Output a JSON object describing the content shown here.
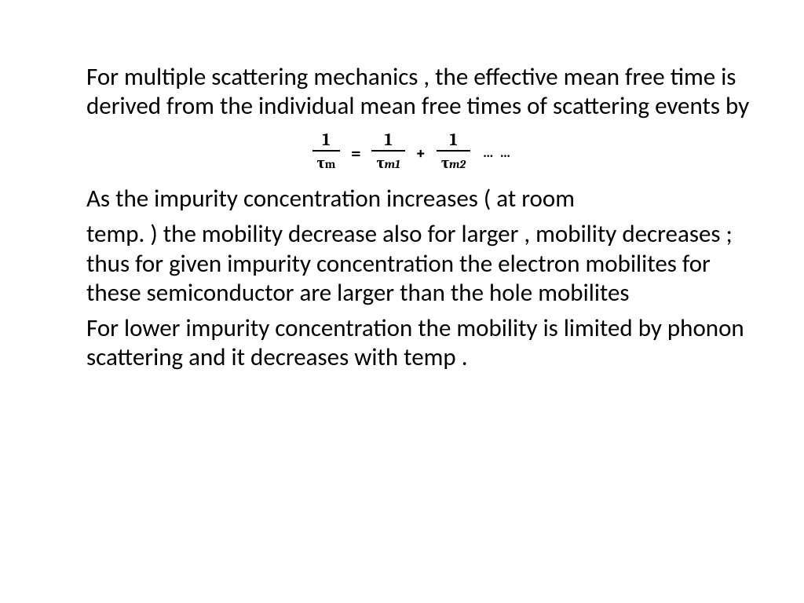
{
  "text": {
    "para1": "For multiple scattering mechanics , the effective mean free time is derived from the individual mean free times of scattering events by",
    "para2": "As the impurity concentration increases ( at room",
    "para3": "temp. ) the mobility decrease also for larger      , mobility decreases ; thus for given impurity concentration the electron mobilites for these semiconductor are larger than the hole mobilites",
    "para4": "For lower impurity concentration the mobility is limited by phonon scattering and it decreases with temp ."
  },
  "equation": {
    "num1": "1",
    "den1_sym": "τ",
    "den1_sub": "m",
    "eq": "=",
    "num2": "1",
    "den2_sym": "τ",
    "den2_sub": "m1",
    "plus": "+",
    "num3": "1",
    "den3_sym": "τ",
    "den3_sub": "m2",
    "dots": "… …"
  },
  "style": {
    "body_fontsize": 31,
    "eq_fontsize": 22,
    "text_color": "#000000",
    "bg_color": "#ffffff",
    "font_family": "Calibri",
    "eq_font_family": "Cambria",
    "eq_weight": "bold"
  }
}
